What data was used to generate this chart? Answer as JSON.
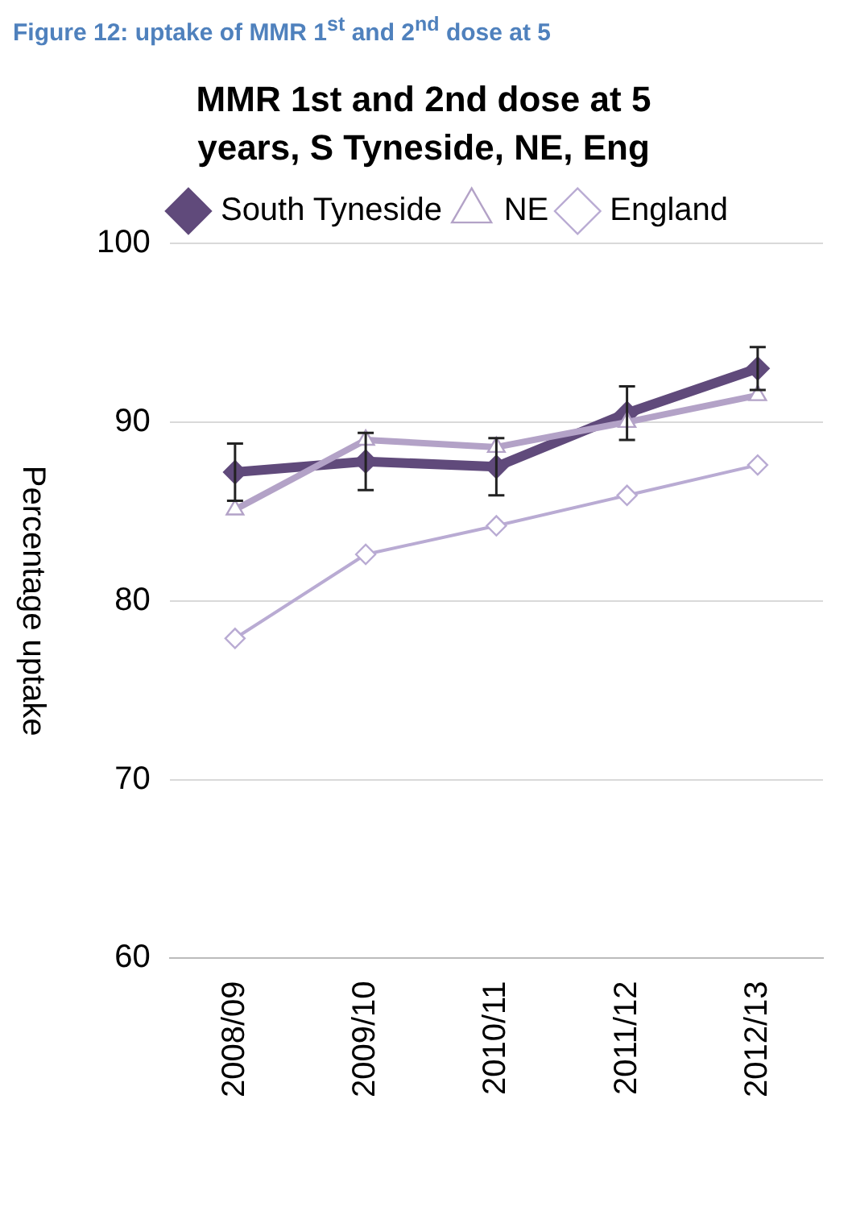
{
  "chart_data": {
    "type": "line",
    "title": "MMR 1st and 2nd dose at 5 years, S Tyneside, NE, Eng",
    "ylabel": "Percentage uptake",
    "annotations": [
      "Figure 12: uptake of MMR 1$^{st}$ and 2$^{nd}$ dose at 5"
    ],
    "categories": [
      "2008/09",
      "2009/10",
      "2010/11",
      "2011/12",
      "2012/13"
    ],
    "series": [
      {
        "name": "South Tyneside",
        "color": "#604a7b",
        "values": [
          87.2,
          87.8,
          87.5,
          90.5,
          93.0
        ],
        "errors": [
          1.6,
          1.6,
          1.6,
          1.5,
          1.2
        ],
        "marker": "diamond"
      },
      {
        "name": "NE",
        "color": "#b3a2c7",
        "values": [
          85.1,
          89.0,
          88.6,
          90.0,
          91.5
        ],
        "marker": "triangle"
      },
      {
        "name": "England",
        "color": "#b9abd3",
        "values": [
          77.9,
          82.6,
          84.2,
          85.9,
          87.6
        ],
        "marker": "diamond"
      }
    ],
    "ylim": [
      60,
      100
    ],
    "yticks": [
      60,
      70,
      80,
      90,
      100
    ],
    "grid": "y",
    "legend": "top",
    "line_style": "solid"
  }
}
